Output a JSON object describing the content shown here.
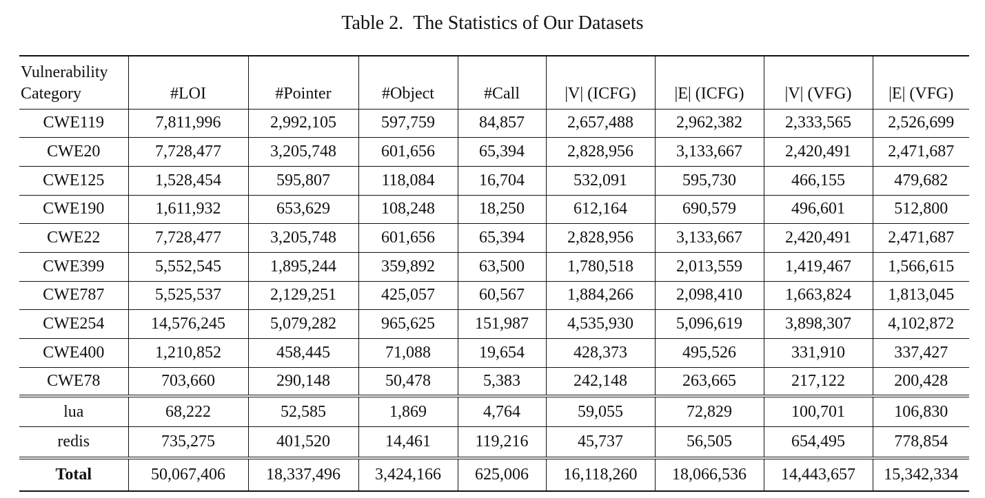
{
  "caption": {
    "number": "Table 2.",
    "title": "The Statistics of Our Datasets"
  },
  "table": {
    "headers": [
      [
        "Vulnerability",
        "Category"
      ],
      "#LOI",
      "#Pointer",
      "#Object",
      "#Call",
      "|V| (ICFG)",
      "|E| (ICFG)",
      "|V| (VFG)",
      "|E| (VFG)"
    ],
    "cwe_rows": [
      [
        "CWE119",
        "7,811,996",
        "2,992,105",
        "597,759",
        "84,857",
        "2,657,488",
        "2,962,382",
        "2,333,565",
        "2,526,699"
      ],
      [
        "CWE20",
        "7,728,477",
        "3,205,748",
        "601,656",
        "65,394",
        "2,828,956",
        "3,133,667",
        "2,420,491",
        "2,471,687"
      ],
      [
        "CWE125",
        "1,528,454",
        "595,807",
        "118,084",
        "16,704",
        "532,091",
        "595,730",
        "466,155",
        "479,682"
      ],
      [
        "CWE190",
        "1,611,932",
        "653,629",
        "108,248",
        "18,250",
        "612,164",
        "690,579",
        "496,601",
        "512,800"
      ],
      [
        "CWE22",
        "7,728,477",
        "3,205,748",
        "601,656",
        "65,394",
        "2,828,956",
        "3,133,667",
        "2,420,491",
        "2,471,687"
      ],
      [
        "CWE399",
        "5,552,545",
        "1,895,244",
        "359,892",
        "63,500",
        "1,780,518",
        "2,013,559",
        "1,419,467",
        "1,566,615"
      ],
      [
        "CWE787",
        "5,525,537",
        "2,129,251",
        "425,057",
        "60,567",
        "1,884,266",
        "2,098,410",
        "1,663,824",
        "1,813,045"
      ],
      [
        "CWE254",
        "14,576,245",
        "5,079,282",
        "965,625",
        "151,987",
        "4,535,930",
        "5,096,619",
        "3,898,307",
        "4,102,872"
      ],
      [
        "CWE400",
        "1,210,852",
        "458,445",
        "71,088",
        "19,654",
        "428,373",
        "495,526",
        "331,910",
        "337,427"
      ],
      [
        "CWE78",
        "703,660",
        "290,148",
        "50,478",
        "5,383",
        "242,148",
        "263,665",
        "217,122",
        "200,428"
      ]
    ],
    "project_rows": [
      [
        "lua",
        "68,222",
        "52,585",
        "1,869",
        "4,764",
        "59,055",
        "72,829",
        "100,701",
        "106,830"
      ],
      [
        "redis",
        "735,275",
        "401,520",
        "14,461",
        "119,216",
        "45,737",
        "56,505",
        "654,495",
        "778,854"
      ]
    ],
    "total_row": [
      "Total",
      "50,067,406",
      "18,337,496",
      "3,424,166",
      "625,006",
      "16,118,260",
      "18,066,536",
      "14,443,657",
      "15,342,334"
    ]
  }
}
